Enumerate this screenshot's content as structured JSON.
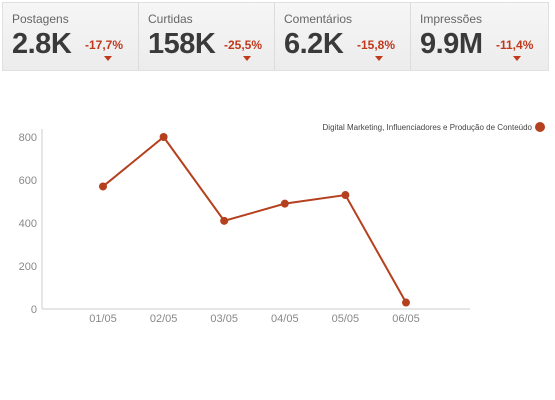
{
  "stats": [
    {
      "label": "Postagens",
      "value": "2.8K",
      "delta": "-17,7%",
      "icon": "down-arrow-icon"
    },
    {
      "label": "Curtidas",
      "value": "158K",
      "delta": "-25,5%",
      "icon": "down-arrow-icon"
    },
    {
      "label": "Comentários",
      "value": "6.2K",
      "delta": "-15,8%",
      "icon": "down-arrow-icon"
    },
    {
      "label": "Impressões",
      "value": "9.9M",
      "delta": "-11,4%",
      "icon": "down-arrow-icon"
    }
  ],
  "colors": {
    "accent": "#c0391b",
    "series": "#b5401e",
    "axis": "#cccccc",
    "tick_text": "#888888"
  },
  "chart_data": {
    "type": "line",
    "categories": [
      "01/05",
      "02/05",
      "03/05",
      "04/05",
      "05/05",
      "06/05"
    ],
    "series": [
      {
        "name": "Digital Marketing, Influenciadores e Produção de Conteúdo",
        "values": [
          570,
          800,
          410,
          490,
          530,
          30
        ]
      }
    ],
    "ylim": [
      0,
      800
    ],
    "yticks": [
      0,
      200,
      400,
      600,
      800
    ],
    "grid": false,
    "legend": "top-right",
    "xlabel": "",
    "ylabel": ""
  }
}
